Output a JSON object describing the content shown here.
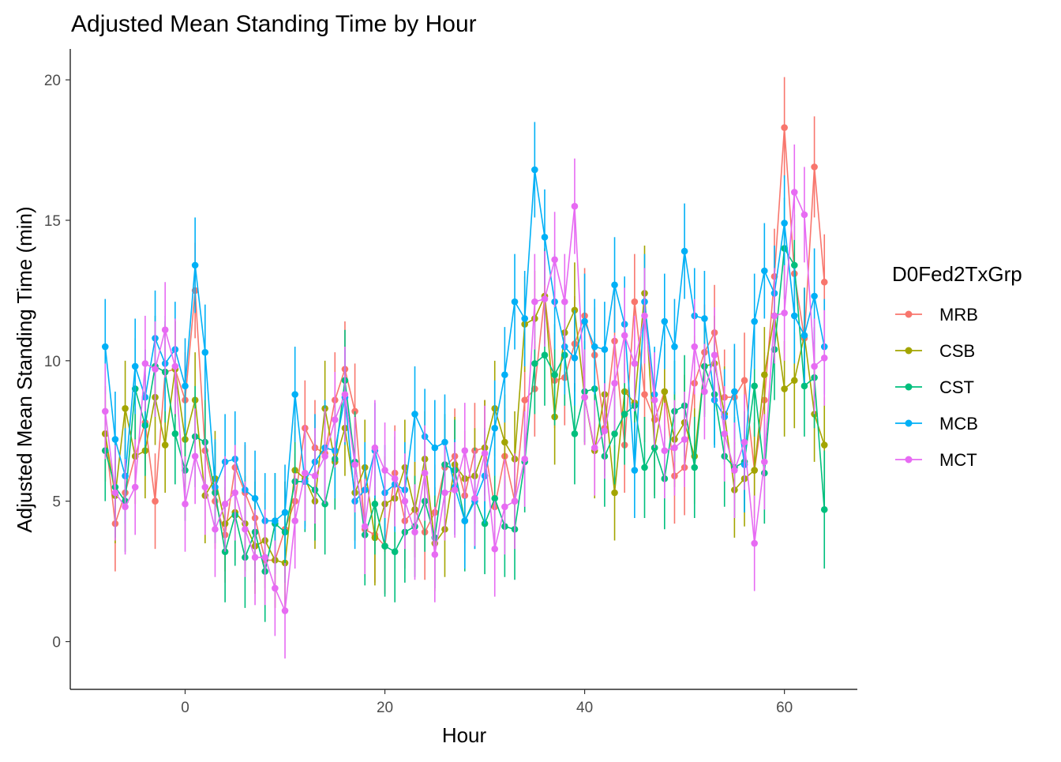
{
  "chart_data": {
    "type": "line",
    "title": "Adjusted Mean Standing Time by Hour",
    "xlabel": "Hour",
    "ylabel": "Adjusted Mean Standing Time (min)",
    "xlim": [
      -11.5,
      67.3
    ],
    "ylim": [
      -1.7,
      21.1
    ],
    "x_ticks": [
      0,
      20,
      40,
      60
    ],
    "y_ticks": [
      0,
      5,
      10,
      15,
      20
    ],
    "grid": false,
    "error_bars": true,
    "legend": {
      "title": "D0Fed2TxGrp",
      "position": "right"
    },
    "x": [
      -8,
      -7,
      -6,
      -5,
      -4,
      -3,
      -2,
      -1,
      0,
      1,
      2,
      3,
      4,
      5,
      6,
      7,
      8,
      9,
      10,
      11,
      12,
      13,
      14,
      15,
      16,
      17,
      18,
      19,
      20,
      21,
      22,
      23,
      24,
      25,
      26,
      27,
      28,
      29,
      30,
      31,
      32,
      33,
      34,
      35,
      36,
      37,
      38,
      39,
      40,
      41,
      42,
      43,
      44,
      45,
      46,
      47,
      48,
      49,
      50,
      51,
      52,
      53,
      54,
      55,
      56,
      57,
      58,
      59,
      60,
      61,
      62,
      63,
      64
    ],
    "series": [
      {
        "name": "MRB",
        "color": "#F8766D",
        "values": [
          7.4,
          4.2,
          5.3,
          6.6,
          7.8,
          5.0,
          9.6,
          9.7,
          8.6,
          12.5,
          6.8,
          5.0,
          3.8,
          6.2,
          5.3,
          4.4,
          2.9,
          2.9,
          4.0,
          5.0,
          7.6,
          6.9,
          6.7,
          8.6,
          9.7,
          8.2,
          4.0,
          3.8,
          3.4,
          6.0,
          4.3,
          4.7,
          3.9,
          4.6,
          6.2,
          6.6,
          5.2,
          6.8,
          6.9,
          4.8,
          6.6,
          5.0,
          8.6,
          9.0,
          12.3,
          9.3,
          9.4,
          10.6,
          11.6,
          10.2,
          7.6,
          10.7,
          7.0,
          12.1,
          8.8,
          7.9,
          8.9,
          5.9,
          6.2,
          9.2,
          10.3,
          11.0,
          8.7,
          8.7,
          9.3,
          6.1,
          8.6,
          13.0,
          18.3,
          13.1,
          10.8,
          16.9,
          12.8
        ],
        "errors": [
          1.7,
          1.7,
          1.7,
          1.7,
          1.7,
          1.7,
          1.7,
          1.7,
          1.7,
          1.7,
          1.7,
          1.7,
          1.7,
          1.7,
          1.7,
          1.7,
          1.7,
          1.7,
          1.7,
          1.7,
          1.7,
          1.7,
          1.7,
          1.7,
          1.7,
          1.7,
          1.7,
          1.7,
          1.7,
          1.7,
          1.7,
          1.7,
          1.7,
          1.7,
          1.7,
          1.7,
          1.7,
          1.7,
          1.7,
          1.7,
          1.7,
          1.7,
          1.7,
          1.7,
          1.7,
          1.7,
          1.7,
          1.7,
          1.7,
          1.7,
          1.7,
          1.7,
          1.7,
          1.7,
          1.7,
          1.7,
          1.7,
          1.7,
          1.7,
          1.7,
          1.7,
          1.7,
          1.7,
          1.7,
          1.7,
          1.7,
          1.7,
          1.7,
          1.8,
          1.7,
          1.7,
          1.8,
          1.7
        ]
      },
      {
        "name": "CSB",
        "color": "#A3A500",
        "values": [
          7.4,
          5.2,
          8.3,
          6.6,
          6.8,
          8.7,
          7.0,
          9.7,
          7.2,
          8.6,
          5.2,
          5.8,
          4.2,
          4.6,
          4.2,
          3.4,
          3.6,
          2.9,
          2.8,
          6.1,
          5.8,
          5.0,
          8.3,
          6.4,
          7.6,
          5.3,
          6.2,
          3.7,
          4.9,
          5.1,
          6.2,
          4.7,
          6.5,
          3.5,
          4.0,
          6.3,
          5.8,
          5.9,
          6.9,
          8.3,
          7.1,
          6.5,
          11.3,
          11.5,
          12.3,
          8.0,
          11.0,
          11.8,
          8.7,
          6.8,
          8.8,
          5.3,
          8.9,
          8.5,
          12.4,
          6.9,
          8.9,
          7.2,
          7.8,
          6.6,
          9.8,
          9.9,
          8.1,
          5.4,
          5.8,
          6.1,
          9.5,
          11.6,
          9.0,
          9.3,
          10.9,
          8.1,
          7.0
        ],
        "errors": [
          1.7,
          1.7,
          1.7,
          1.7,
          1.7,
          1.7,
          1.7,
          1.7,
          1.7,
          1.7,
          1.7,
          1.7,
          1.7,
          1.7,
          1.7,
          1.7,
          1.7,
          1.7,
          1.7,
          1.7,
          1.7,
          1.7,
          1.7,
          1.7,
          1.7,
          1.7,
          1.7,
          1.7,
          1.7,
          1.7,
          1.7,
          1.7,
          1.7,
          1.7,
          1.7,
          1.7,
          1.7,
          1.7,
          1.7,
          1.7,
          1.7,
          1.7,
          1.7,
          1.7,
          1.7,
          1.7,
          1.7,
          1.7,
          1.7,
          1.7,
          1.7,
          1.7,
          1.7,
          1.7,
          1.7,
          1.7,
          1.7,
          1.7,
          1.7,
          1.7,
          1.7,
          1.7,
          1.7,
          1.7,
          1.7,
          1.7,
          1.7,
          1.7,
          1.7,
          1.7,
          1.7,
          1.7,
          1.7
        ]
      },
      {
        "name": "CST",
        "color": "#00BF7D",
        "values": [
          6.8,
          5.5,
          5.0,
          9.0,
          7.7,
          9.8,
          9.6,
          7.4,
          6.1,
          7.3,
          7.1,
          5.3,
          3.2,
          4.5,
          3.0,
          3.9,
          2.5,
          4.2,
          3.9,
          5.7,
          5.7,
          5.4,
          4.9,
          6.5,
          9.3,
          6.4,
          3.8,
          4.9,
          3.4,
          3.2,
          3.9,
          4.1,
          5.0,
          3.7,
          6.3,
          6.1,
          4.3,
          5.1,
          4.2,
          5.1,
          4.1,
          4.0,
          6.4,
          9.9,
          10.2,
          9.5,
          10.2,
          7.4,
          8.9,
          9.0,
          6.6,
          7.4,
          8.1,
          8.4,
          6.2,
          6.9,
          5.8,
          8.2,
          8.4,
          6.2,
          9.8,
          8.8,
          6.6,
          6.2,
          6.4,
          9.1,
          6.0,
          10.4,
          14.0,
          13.4,
          9.1,
          9.4,
          4.7
        ],
        "errors": [
          1.8,
          1.8,
          1.8,
          1.8,
          1.8,
          1.8,
          1.8,
          1.8,
          1.8,
          1.8,
          1.8,
          1.8,
          1.8,
          1.8,
          1.8,
          1.8,
          1.8,
          1.8,
          1.8,
          1.8,
          1.8,
          1.8,
          1.8,
          1.8,
          1.8,
          1.8,
          1.8,
          1.8,
          1.8,
          1.8,
          1.8,
          1.8,
          1.8,
          1.8,
          1.8,
          1.8,
          1.8,
          1.8,
          1.8,
          1.8,
          1.8,
          1.8,
          1.8,
          1.8,
          1.8,
          1.8,
          1.8,
          1.8,
          1.8,
          1.8,
          1.8,
          1.8,
          1.8,
          1.8,
          1.8,
          1.8,
          1.8,
          1.8,
          1.8,
          1.8,
          1.8,
          1.8,
          1.8,
          1.8,
          1.8,
          1.8,
          1.8,
          1.8,
          1.8,
          1.8,
          1.8,
          1.8,
          2.1
        ]
      },
      {
        "name": "MCB",
        "color": "#00B0F6",
        "values": [
          10.5,
          7.2,
          5.9,
          9.8,
          8.7,
          10.8,
          9.9,
          10.4,
          9.1,
          13.4,
          10.3,
          5.5,
          6.4,
          6.5,
          5.4,
          5.1,
          4.3,
          4.3,
          4.6,
          8.8,
          5.7,
          6.4,
          6.9,
          6.8,
          8.7,
          5.0,
          5.4,
          6.8,
          5.3,
          5.6,
          5.4,
          8.1,
          7.3,
          6.9,
          7.1,
          5.5,
          4.3,
          5.0,
          5.9,
          7.6,
          9.5,
          12.1,
          11.5,
          16.8,
          14.4,
          12.1,
          10.5,
          10.1,
          11.4,
          10.5,
          10.4,
          12.7,
          11.3,
          6.1,
          12.1,
          8.8,
          11.4,
          10.5,
          13.9,
          11.6,
          11.5,
          8.6,
          8.0,
          8.9,
          6.3,
          11.4,
          13.2,
          12.4,
          14.9,
          11.6,
          10.9,
          12.3,
          10.5
        ],
        "errors": [
          1.7,
          1.7,
          1.7,
          1.7,
          1.7,
          1.7,
          1.7,
          1.7,
          1.7,
          1.7,
          1.7,
          1.7,
          1.7,
          1.7,
          1.7,
          1.7,
          1.7,
          1.7,
          1.7,
          1.7,
          1.7,
          1.7,
          1.7,
          1.7,
          1.7,
          1.7,
          1.7,
          1.7,
          1.7,
          1.7,
          1.7,
          1.7,
          1.7,
          1.7,
          1.7,
          1.7,
          1.7,
          1.7,
          1.7,
          1.7,
          1.7,
          1.7,
          1.7,
          1.7,
          1.7,
          1.7,
          1.7,
          1.7,
          1.7,
          1.7,
          1.7,
          1.7,
          1.7,
          1.7,
          1.7,
          1.7,
          1.7,
          1.7,
          1.7,
          1.7,
          1.7,
          1.7,
          1.7,
          1.7,
          1.7,
          1.7,
          1.7,
          1.7,
          1.7,
          1.7,
          1.7,
          1.7,
          1.7
        ]
      },
      {
        "name": "MCT",
        "color": "#E76BF3",
        "values": [
          8.2,
          5.3,
          4.8,
          5.5,
          9.9,
          9.7,
          11.1,
          9.8,
          4.9,
          6.6,
          5.5,
          4.0,
          4.9,
          5.3,
          4.0,
          3.0,
          3.0,
          1.9,
          1.1,
          4.3,
          6.0,
          5.9,
          6.6,
          7.9,
          8.8,
          6.3,
          4.1,
          6.9,
          6.1,
          5.8,
          5.0,
          3.9,
          6.0,
          3.1,
          5.3,
          5.4,
          6.8,
          5.1,
          6.7,
          3.3,
          4.8,
          5.0,
          6.5,
          12.1,
          12.2,
          13.6,
          12.1,
          15.5,
          8.7,
          6.9,
          7.5,
          9.2,
          10.9,
          9.9,
          11.6,
          8.6,
          6.8,
          6.9,
          7.2,
          10.5,
          8.9,
          10.2,
          7.4,
          6.1,
          7.1,
          3.5,
          6.4,
          11.6,
          11.7,
          16.0,
          15.2,
          9.8,
          10.1
        ],
        "errors": [
          1.7,
          1.7,
          1.7,
          1.7,
          1.7,
          1.7,
          1.7,
          1.7,
          1.7,
          1.7,
          1.7,
          1.7,
          1.7,
          1.7,
          1.7,
          1.7,
          1.7,
          1.7,
          1.7,
          1.7,
          1.7,
          1.7,
          1.7,
          1.7,
          1.7,
          1.7,
          1.7,
          1.7,
          1.7,
          1.7,
          1.7,
          1.7,
          1.7,
          1.7,
          1.7,
          1.7,
          1.7,
          1.7,
          1.7,
          1.7,
          1.7,
          1.7,
          1.7,
          1.7,
          1.7,
          1.7,
          1.7,
          1.7,
          1.7,
          1.7,
          1.7,
          1.7,
          1.7,
          1.7,
          1.7,
          1.7,
          1.7,
          1.7,
          1.7,
          1.7,
          1.7,
          1.7,
          1.7,
          1.7,
          1.7,
          1.7,
          1.7,
          1.7,
          1.7,
          1.7,
          1.7,
          1.7,
          1.7
        ]
      }
    ]
  }
}
